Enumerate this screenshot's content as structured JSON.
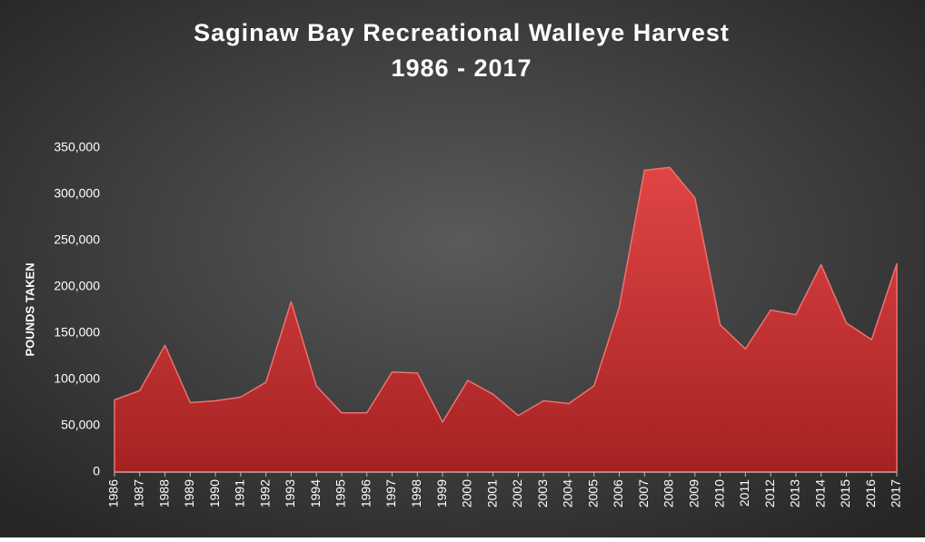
{
  "chart_data": {
    "type": "area",
    "title": "Saginaw Bay Recreational Walleye Harvest",
    "subtitle": "1986 - 2017",
    "y_label": "POUNDS TAKEN",
    "color": "#d63a3a",
    "grid": false,
    "categories": [
      "1986",
      "1987",
      "1988",
      "1989",
      "1990",
      "1991",
      "1992",
      "1993",
      "1994",
      "1995",
      "1996",
      "1997",
      "1998",
      "1999",
      "2000",
      "2001",
      "2002",
      "2003",
      "2004",
      "2005",
      "2006",
      "2007",
      "2008",
      "2009",
      "2010",
      "2011",
      "2012",
      "2013",
      "2014",
      "2015",
      "2016",
      "2017"
    ],
    "values": [
      78000,
      88000,
      137000,
      75000,
      77000,
      81000,
      97000,
      184000,
      93000,
      64000,
      64000,
      108000,
      107000,
      54000,
      99000,
      84000,
      61000,
      77000,
      74000,
      93000,
      178000,
      326000,
      329000,
      296000,
      159000,
      133000,
      175000,
      170000,
      224000,
      161000,
      143000,
      225000
    ],
    "ylim": [
      0,
      350000
    ],
    "yticks": [
      0,
      {
        "value": 50000,
        "label": "50,000"
      },
      {
        "value": 100000,
        "label": "100,000"
      },
      {
        "value": 150000,
        "label": "150,000"
      },
      {
        "value": 200000,
        "label": "200,000"
      },
      {
        "value": 250000,
        "label": "250,000"
      },
      {
        "value": 300000,
        "label": "300,000"
      },
      {
        "value": 350000,
        "label": "350,000"
      }
    ]
  }
}
